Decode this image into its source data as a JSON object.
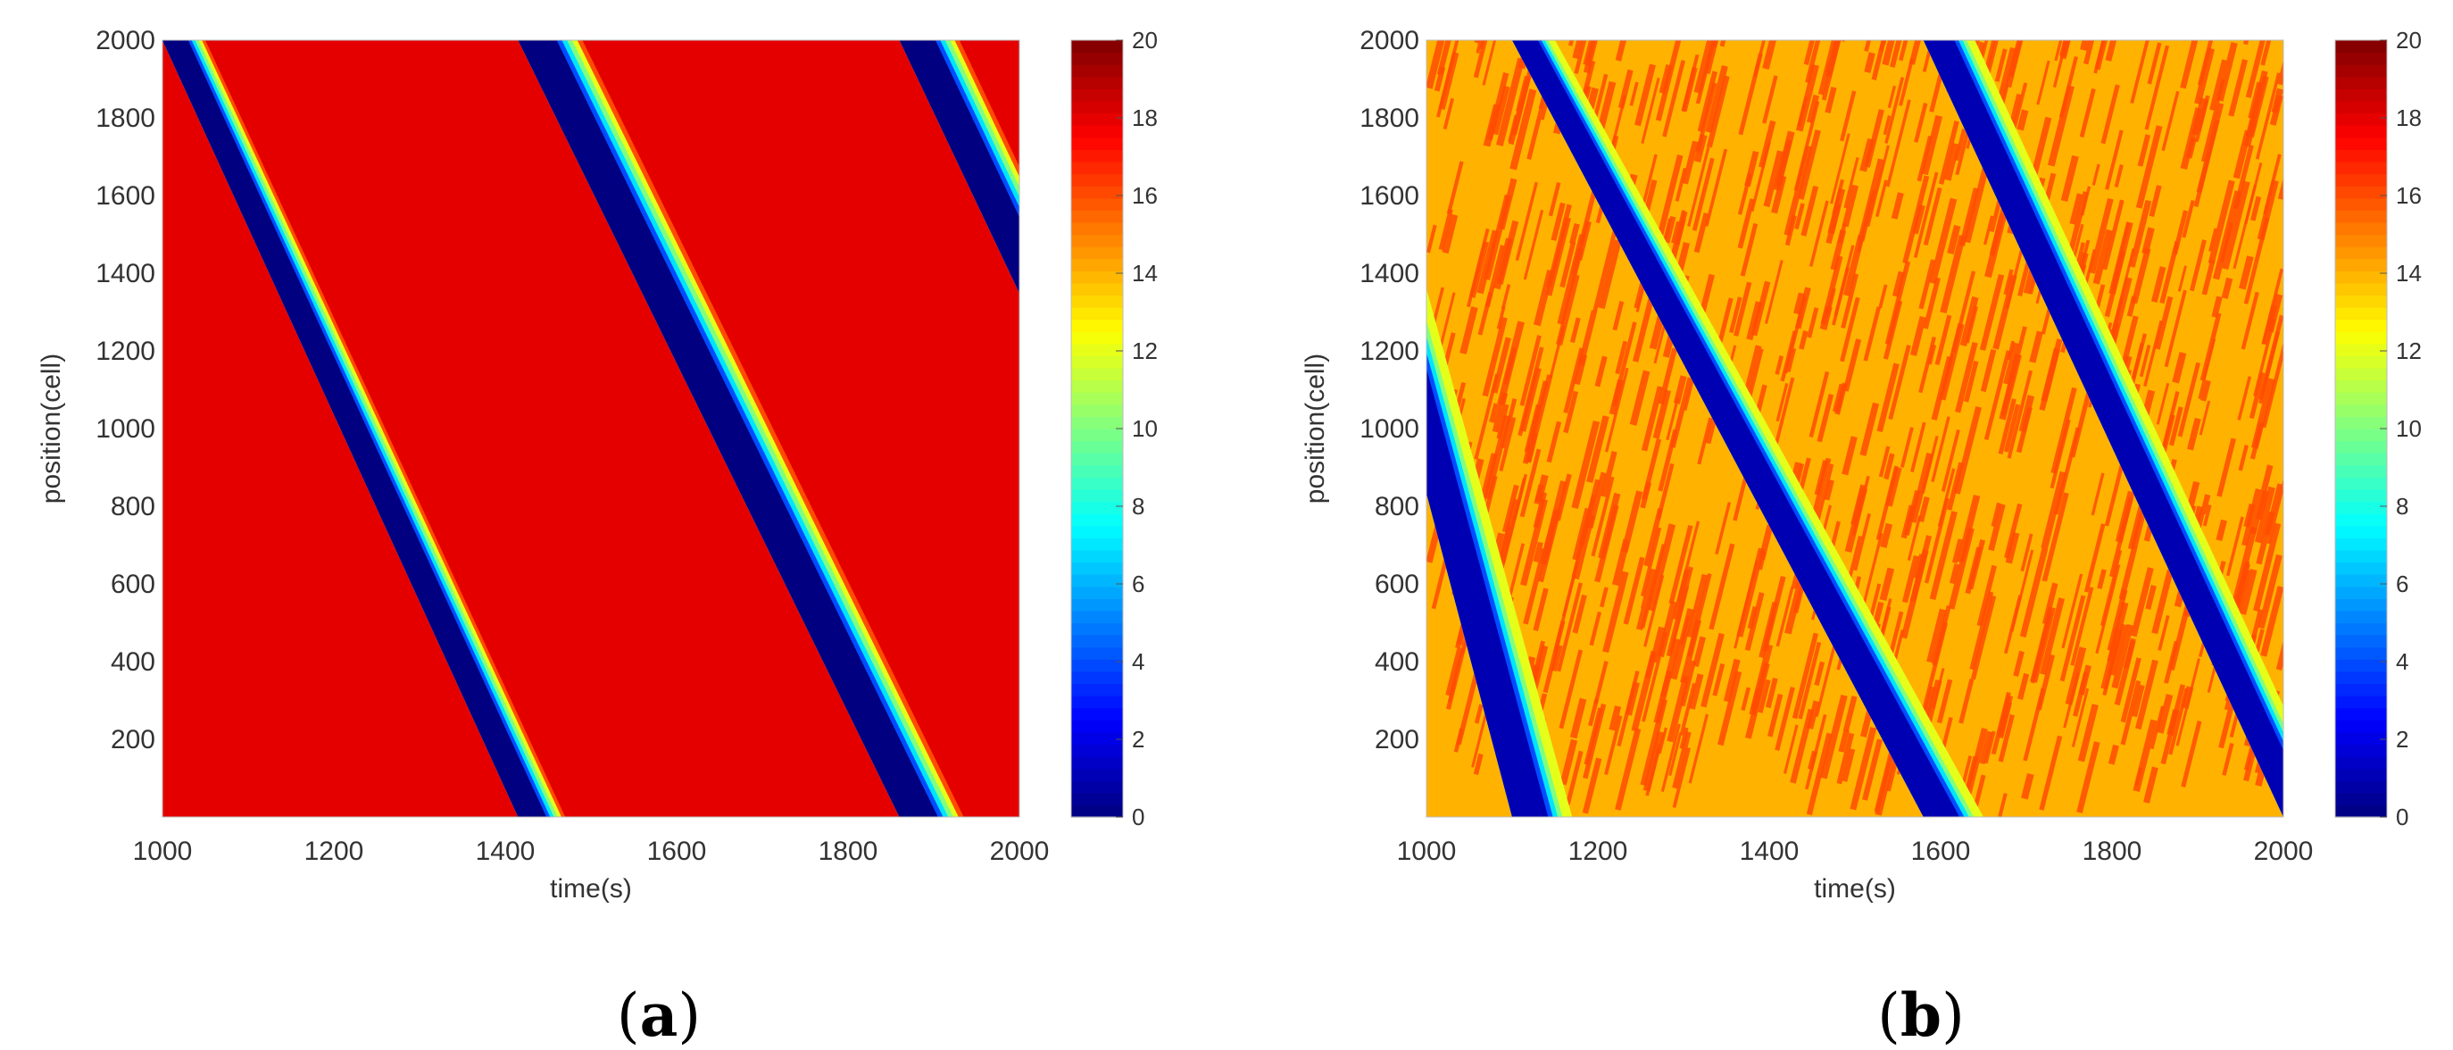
{
  "chart_data": [
    {
      "type": "heatmap",
      "panel_label": "a",
      "xlabel": "time(s)",
      "ylabel": "position(cell)",
      "xlim": [
        1000,
        2000
      ],
      "ylim": [
        0,
        2000
      ],
      "xticks": [
        1000,
        1200,
        1400,
        1600,
        1800,
        2000
      ],
      "yticks": [
        200,
        400,
        600,
        800,
        1000,
        1200,
        1400,
        1600,
        1800,
        2000
      ],
      "colorbar": {
        "min": 0,
        "max": 20,
        "ticks": [
          0,
          2,
          4,
          6,
          8,
          10,
          12,
          14,
          16,
          18,
          20
        ],
        "colormap": "jet"
      },
      "background_value": 18,
      "jam_bands": [
        {
          "x_at_top": 1000,
          "x_at_bottom": 1415,
          "x_end_at_top": 1050,
          "x_end_at_bottom": 1470,
          "jam_value": 0
        },
        {
          "x_at_top": 1415,
          "x_at_bottom": 1860,
          "x_end_at_top": 1490,
          "x_end_at_bottom": 1935,
          "jam_value": 0
        },
        {
          "x_at_top": 1860,
          "x_at_bottom": 2290,
          "x_end_at_top": 1930,
          "x_end_at_bottom": 2360,
          "jam_value": 0
        }
      ]
    },
    {
      "type": "heatmap",
      "panel_label": "b",
      "xlabel": "time(s)",
      "ylabel": "position(cell)",
      "xlim": [
        1000,
        2000
      ],
      "ylim": [
        0,
        2000
      ],
      "xticks": [
        1000,
        1200,
        1400,
        1600,
        1800,
        2000
      ],
      "yticks": [
        200,
        400,
        600,
        800,
        1000,
        1200,
        1400,
        1600,
        1800,
        2000
      ],
      "colorbar": {
        "min": 0,
        "max": 20,
        "ticks": [
          0,
          2,
          4,
          6,
          8,
          10,
          12,
          14,
          16,
          18,
          20
        ],
        "colormap": "jet"
      },
      "background_value": 14,
      "noise_value": 16,
      "jam_bands": [
        {
          "x_at_top": 860,
          "x_at_bottom": 1100,
          "x_end_at_top": 920,
          "x_end_at_bottom": 1170,
          "jam_value": 1
        },
        {
          "x_at_top": 1100,
          "x_at_bottom": 1580,
          "x_end_at_top": 1150,
          "x_end_at_bottom": 1650,
          "jam_value": 1
        },
        {
          "x_at_top": 1580,
          "x_at_bottom": 2000,
          "x_end_at_top": 1640,
          "x_end_at_bottom": 2060,
          "jam_value": 1
        }
      ]
    }
  ]
}
